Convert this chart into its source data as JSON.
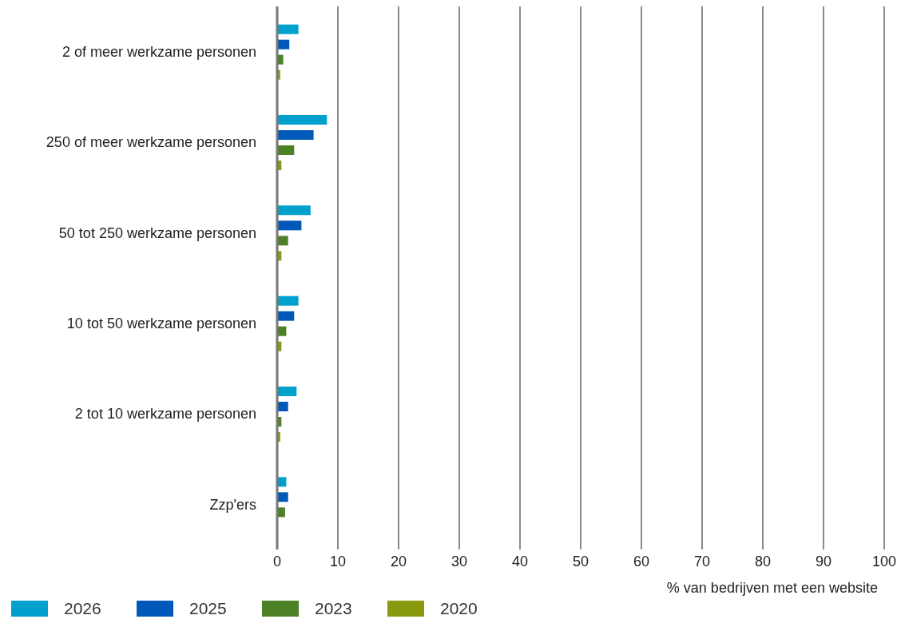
{
  "chart_data": {
    "type": "bar",
    "orientation": "horizontal",
    "xlabel": "% van bedrijven met een website",
    "categories": [
      "2 of meer werkzame personen",
      "250 of meer werkzame personen",
      "50 tot 250 werkzame personen",
      "10 tot 50 werkzame personen",
      "2 tot 10 werkzame personen",
      "Zzp'ers"
    ],
    "series": [
      {
        "name": "2026",
        "color": "#00a1cd",
        "values": [
          3.5,
          8.2,
          5.5,
          3.5,
          3.2,
          1.5
        ]
      },
      {
        "name": "2025",
        "color": "#0058b8",
        "values": [
          2.0,
          6.0,
          4.0,
          2.8,
          1.8,
          1.8
        ]
      },
      {
        "name": "2023",
        "color": "#4c8125",
        "values": [
          1.0,
          2.8,
          1.8,
          1.5,
          0.7,
          1.3
        ]
      },
      {
        "name": "2020",
        "color": "#8a9a0e",
        "values": [
          0.5,
          0.7,
          0.7,
          0.7,
          0.5,
          null
        ]
      }
    ],
    "xlim": [
      0,
      100
    ],
    "xticks": [
      0,
      10,
      20,
      30,
      40,
      50,
      60,
      70,
      80,
      90,
      100
    ],
    "grid": "x",
    "legend": "bottom left"
  }
}
